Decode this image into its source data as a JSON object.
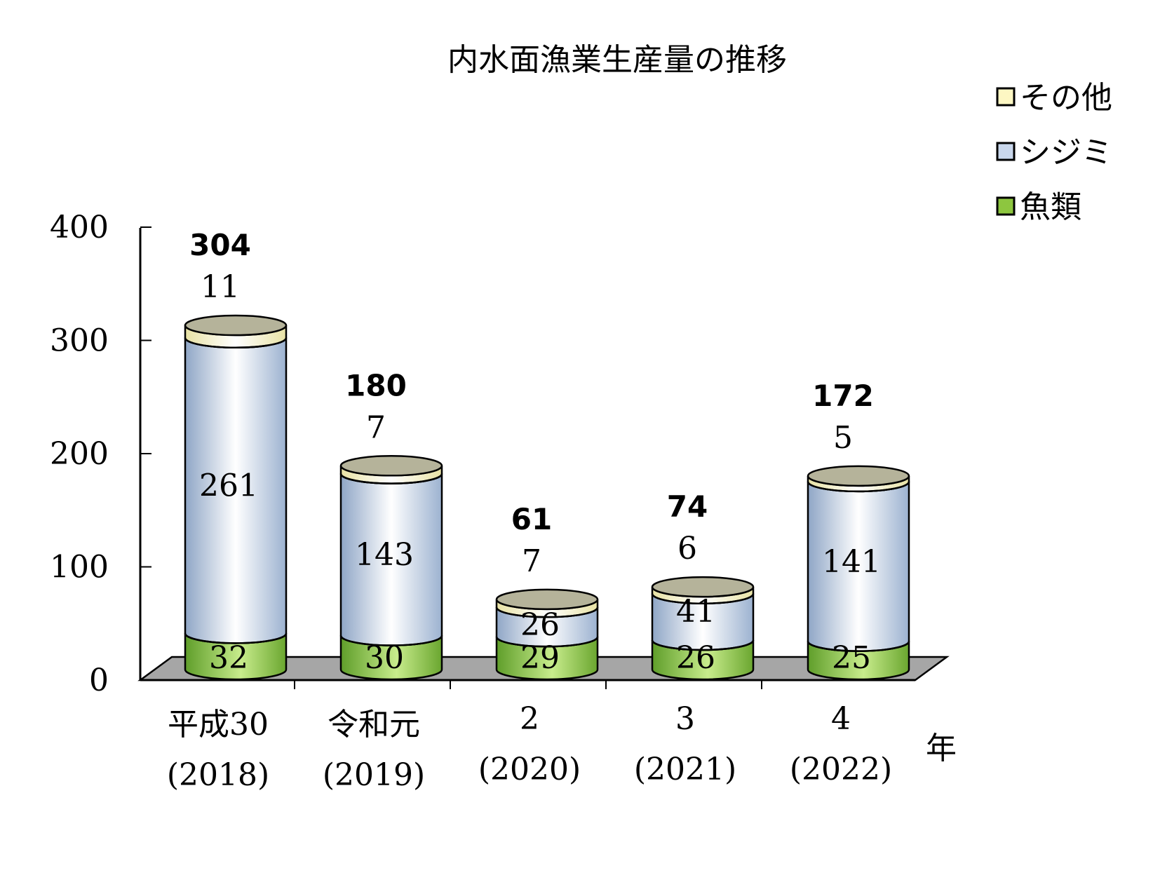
{
  "chart_data": {
    "type": "bar",
    "variant": "stacked-3d-cylinder",
    "title": "内水面漁業生産量の推移",
    "x_unit_label": "年",
    "categories": [
      {
        "era": "平成30",
        "year": "(2018)"
      },
      {
        "era": "令和元",
        "year": "(2019)"
      },
      {
        "era": "2",
        "year": "(2020)"
      },
      {
        "era": "3",
        "year": "(2021)"
      },
      {
        "era": "4",
        "year": "(2022)"
      }
    ],
    "series": [
      {
        "name": "魚類",
        "values": [
          32,
          30,
          29,
          26,
          25
        ],
        "color": "#8dc63f"
      },
      {
        "name": "シジミ",
        "values": [
          261,
          143,
          26,
          41,
          141
        ],
        "color": "#c9d7ec"
      },
      {
        "name": "その他",
        "values": [
          11,
          7,
          7,
          6,
          5
        ],
        "color": "#fdf7c3"
      }
    ],
    "totals": [
      304,
      180,
      61,
      74,
      172
    ],
    "ylim": [
      0,
      400
    ],
    "yticks": [
      0,
      100,
      200,
      300,
      400
    ],
    "legend_placement": "top-right",
    "grid": false,
    "floor_color": "#a6a6a6",
    "top_cap_color": "#b5b39a"
  }
}
